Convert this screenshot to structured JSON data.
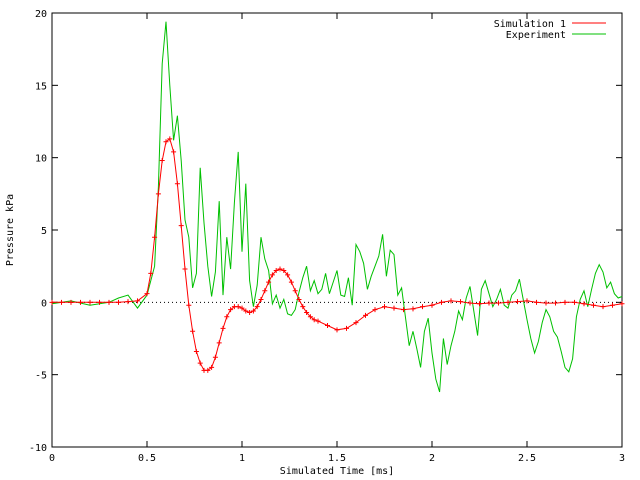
{
  "chart_data": {
    "type": "line",
    "title": "",
    "xlabel": "Simulated Time [ms]",
    "ylabel": "Pressure kPa",
    "xlim": [
      0,
      3
    ],
    "ylim": [
      -10,
      20
    ],
    "xticks": [
      0,
      0.5,
      1,
      1.5,
      2,
      2.5,
      3
    ],
    "xtick_labels": [
      "0",
      "0.5",
      "1",
      "1.5",
      "2",
      "2.5",
      "3"
    ],
    "yticks": [
      -10,
      -5,
      0,
      5,
      10,
      15,
      20
    ],
    "ytick_labels": [
      "-10",
      "-5",
      "0",
      "5",
      "10",
      "15",
      "20"
    ],
    "grid": false,
    "legend_position": "top-right",
    "series": [
      {
        "name": "Simulation 1",
        "color": "#ff0000",
        "marker": "plus",
        "x": [
          0,
          0.05,
          0.1,
          0.15,
          0.2,
          0.25,
          0.3,
          0.35,
          0.4,
          0.45,
          0.5,
          0.52,
          0.54,
          0.56,
          0.58,
          0.6,
          0.62,
          0.64,
          0.66,
          0.68,
          0.7,
          0.72,
          0.74,
          0.76,
          0.78,
          0.8,
          0.82,
          0.84,
          0.86,
          0.88,
          0.9,
          0.92,
          0.94,
          0.96,
          0.98,
          1.0,
          1.02,
          1.04,
          1.06,
          1.08,
          1.1,
          1.12,
          1.14,
          1.16,
          1.18,
          1.2,
          1.22,
          1.24,
          1.26,
          1.28,
          1.3,
          1.32,
          1.34,
          1.36,
          1.38,
          1.4,
          1.45,
          1.5,
          1.55,
          1.6,
          1.65,
          1.7,
          1.75,
          1.8,
          1.85,
          1.9,
          1.95,
          2.0,
          2.05,
          2.1,
          2.15,
          2.2,
          2.25,
          2.3,
          2.35,
          2.4,
          2.45,
          2.5,
          2.55,
          2.6,
          2.65,
          2.7,
          2.75,
          2.8,
          2.85,
          2.9,
          2.95,
          3.0
        ],
        "y": [
          0,
          0,
          0,
          0,
          0,
          0,
          0,
          0,
          0.05,
          0.1,
          0.6,
          2.0,
          4.5,
          7.5,
          9.8,
          11.1,
          11.3,
          10.4,
          8.2,
          5.3,
          2.3,
          -0.2,
          -2.0,
          -3.4,
          -4.2,
          -4.7,
          -4.7,
          -4.5,
          -3.8,
          -2.8,
          -1.8,
          -1.0,
          -0.5,
          -0.3,
          -0.3,
          -0.4,
          -0.6,
          -0.7,
          -0.6,
          -0.3,
          0.2,
          0.8,
          1.4,
          1.9,
          2.2,
          2.3,
          2.2,
          1.9,
          1.4,
          0.8,
          0.2,
          -0.3,
          -0.7,
          -1.0,
          -1.2,
          -1.3,
          -1.6,
          -1.9,
          -1.8,
          -1.4,
          -0.9,
          -0.5,
          -0.3,
          -0.4,
          -0.5,
          -0.45,
          -0.3,
          -0.2,
          0,
          0.1,
          0.05,
          -0.05,
          -0.1,
          -0.05,
          -0.05,
          0,
          0.05,
          0.1,
          0.0,
          -0.05,
          -0.05,
          0,
          0,
          -0.1,
          -0.2,
          -0.3,
          -0.2,
          -0.1
        ]
      },
      {
        "name": "Experiment",
        "color": "#00c000",
        "marker": "none",
        "x": [
          0,
          0.1,
          0.2,
          0.3,
          0.35,
          0.4,
          0.45,
          0.5,
          0.54,
          0.56,
          0.58,
          0.6,
          0.62,
          0.64,
          0.66,
          0.68,
          0.7,
          0.72,
          0.74,
          0.76,
          0.78,
          0.8,
          0.82,
          0.84,
          0.86,
          0.88,
          0.9,
          0.92,
          0.94,
          0.96,
          0.98,
          1.0,
          1.02,
          1.04,
          1.06,
          1.08,
          1.1,
          1.12,
          1.14,
          1.16,
          1.18,
          1.2,
          1.22,
          1.24,
          1.26,
          1.28,
          1.3,
          1.32,
          1.34,
          1.36,
          1.38,
          1.4,
          1.42,
          1.44,
          1.46,
          1.48,
          1.5,
          1.52,
          1.54,
          1.56,
          1.58,
          1.6,
          1.62,
          1.64,
          1.66,
          1.68,
          1.7,
          1.72,
          1.74,
          1.76,
          1.78,
          1.8,
          1.82,
          1.84,
          1.86,
          1.88,
          1.9,
          1.92,
          1.94,
          1.96,
          1.98,
          2.0,
          2.02,
          2.04,
          2.06,
          2.08,
          2.1,
          2.12,
          2.14,
          2.16,
          2.18,
          2.2,
          2.22,
          2.24,
          2.26,
          2.28,
          2.3,
          2.32,
          2.34,
          2.36,
          2.38,
          2.4,
          2.42,
          2.44,
          2.46,
          2.48,
          2.5,
          2.52,
          2.54,
          2.56,
          2.58,
          2.6,
          2.62,
          2.64,
          2.66,
          2.68,
          2.7,
          2.72,
          2.74,
          2.76,
          2.78,
          2.8,
          2.82,
          2.84,
          2.86,
          2.88,
          2.9,
          2.92,
          2.94,
          2.96,
          2.98,
          3.0
        ],
        "y": [
          -0.1,
          0.1,
          -0.2,
          0.0,
          0.3,
          0.5,
          -0.4,
          0.5,
          2.5,
          8.0,
          16.5,
          19.4,
          15.0,
          11.2,
          12.9,
          9.8,
          5.7,
          4.5,
          1.0,
          2.0,
          9.3,
          5.5,
          2.5,
          0.4,
          2.1,
          7.0,
          0.5,
          4.5,
          2.3,
          6.9,
          10.4,
          3.5,
          8.2,
          1.5,
          -0.3,
          1.2,
          4.5,
          3.0,
          2.2,
          -0.1,
          0.5,
          -0.4,
          0.2,
          -0.8,
          -0.9,
          -0.5,
          0.7,
          1.7,
          2.5,
          0.8,
          1.5,
          0.6,
          0.9,
          2.0,
          0.6,
          1.4,
          2.2,
          0.5,
          0.4,
          1.7,
          -0.2,
          4.0,
          3.5,
          2.7,
          0.9,
          1.8,
          2.5,
          3.2,
          4.7,
          1.8,
          3.6,
          3.3,
          0.5,
          1.0,
          -1.0,
          -3.0,
          -2.0,
          -3.2,
          -4.5,
          -2.0,
          -1.1,
          -3.5,
          -5.3,
          -6.2,
          -2.5,
          -4.3,
          -3.0,
          -2.0,
          -0.6,
          -1.2,
          0.3,
          1.1,
          -0.6,
          -2.3,
          0.9,
          1.5,
          0.6,
          -0.3,
          0.2,
          0.9,
          -0.2,
          -0.4,
          0.5,
          0.8,
          1.6,
          0.2,
          -1.2,
          -2.5,
          -3.5,
          -2.7,
          -1.4,
          -0.5,
          -1.0,
          -2.0,
          -2.4,
          -3.4,
          -4.5,
          -4.8,
          -3.9,
          -1.0,
          0.2,
          0.8,
          -0.3,
          0.9,
          2.0,
          2.6,
          2.1,
          1.0,
          1.4,
          0.6,
          0.3,
          0.4
        ]
      }
    ]
  }
}
